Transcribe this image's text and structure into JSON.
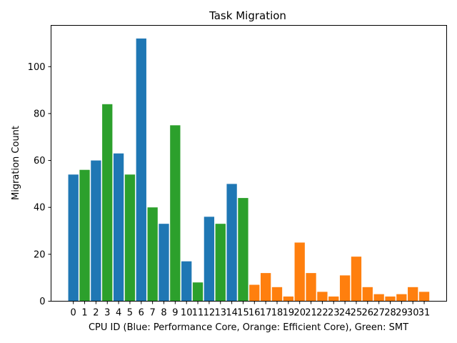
{
  "chart_data": {
    "type": "bar",
    "title": "Task Migration",
    "xlabel": "CPU ID (Blue: Performance Core, Orange: Efficient Core), Green: SMT",
    "ylabel": "Migration Count",
    "ylim": [
      0,
      117.6
    ],
    "yticks": [
      0,
      20,
      40,
      60,
      80,
      100
    ],
    "grid": false,
    "legend": "none",
    "categories": [
      "0",
      "1",
      "2",
      "3",
      "4",
      "5",
      "6",
      "7",
      "8",
      "9",
      "10",
      "11",
      "12",
      "13",
      "14",
      "15",
      "16",
      "17",
      "18",
      "19",
      "20",
      "21",
      "22",
      "23",
      "24",
      "25",
      "26",
      "27",
      "28",
      "29",
      "30",
      "31"
    ],
    "values": [
      54,
      56,
      60,
      84,
      63,
      54,
      112,
      40,
      33,
      75,
      17,
      8,
      36,
      33,
      50,
      44,
      7,
      12,
      6,
      2,
      25,
      12,
      4,
      2,
      11,
      19,
      6,
      3,
      2,
      3,
      6,
      4
    ],
    "core_types": [
      "performance",
      "smt",
      "performance",
      "smt",
      "performance",
      "smt",
      "performance",
      "smt",
      "performance",
      "smt",
      "performance",
      "smt",
      "performance",
      "smt",
      "performance",
      "smt",
      "efficient",
      "efficient",
      "efficient",
      "efficient",
      "efficient",
      "efficient",
      "efficient",
      "efficient",
      "efficient",
      "efficient",
      "efficient",
      "efficient",
      "efficient",
      "efficient",
      "efficient",
      "efficient"
    ],
    "colors": {
      "performance": "#1f77b4",
      "efficient": "#ff7f0e",
      "smt": "#2ca02c"
    }
  }
}
